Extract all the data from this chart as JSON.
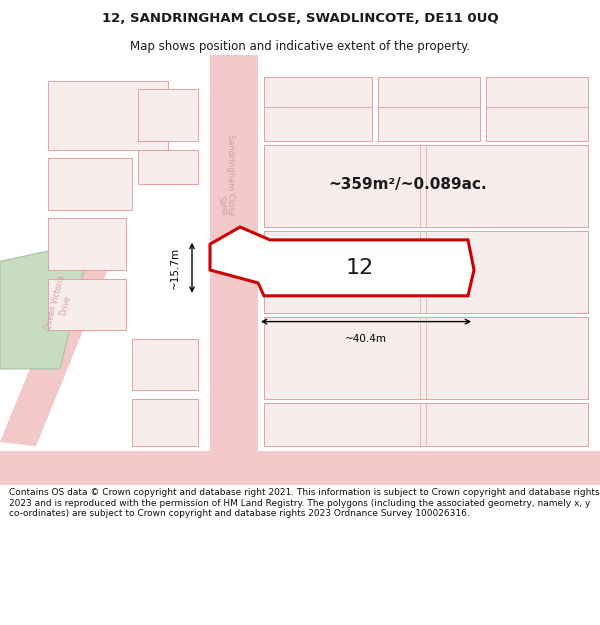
{
  "title_line1": "12, SANDRINGHAM CLOSE, SWADLINCOTE, DE11 0UQ",
  "title_line2": "Map shows position and indicative extent of the property.",
  "area_text": "~359m²/~0.089ac.",
  "label_number": "12",
  "dim_width": "~40.4m",
  "dim_height": "~15.7m",
  "road_label1": "Sandringham Close",
  "road_label2": "Queen Victoria•Drive",
  "footer_text": "Contains OS data © Crown copyright and database right 2021. This information is subject to Crown copyright and database rights 2023 and is reproduced with the permission of HM Land Registry. The polygons (including the associated geometry, namely x, y co-ordinates) are subject to Crown copyright and database rights 2023 Ordnance Survey 100026316.",
  "bg_color": "#ffffff",
  "map_bg": "#ffffff",
  "plot_fill": "#ffffff",
  "plot_edge": "#cc0000",
  "road_color": "#f2c8c8",
  "block_edge": "#e8a0a0",
  "block_fill": "#f7eded",
  "dim_color": "#000000",
  "text_color": "#1a1a1a",
  "footer_color": "#111111",
  "road_label_color": "#d0a0a0",
  "green_fill": "#c8ddc0",
  "green_edge": "#a8c0a0"
}
